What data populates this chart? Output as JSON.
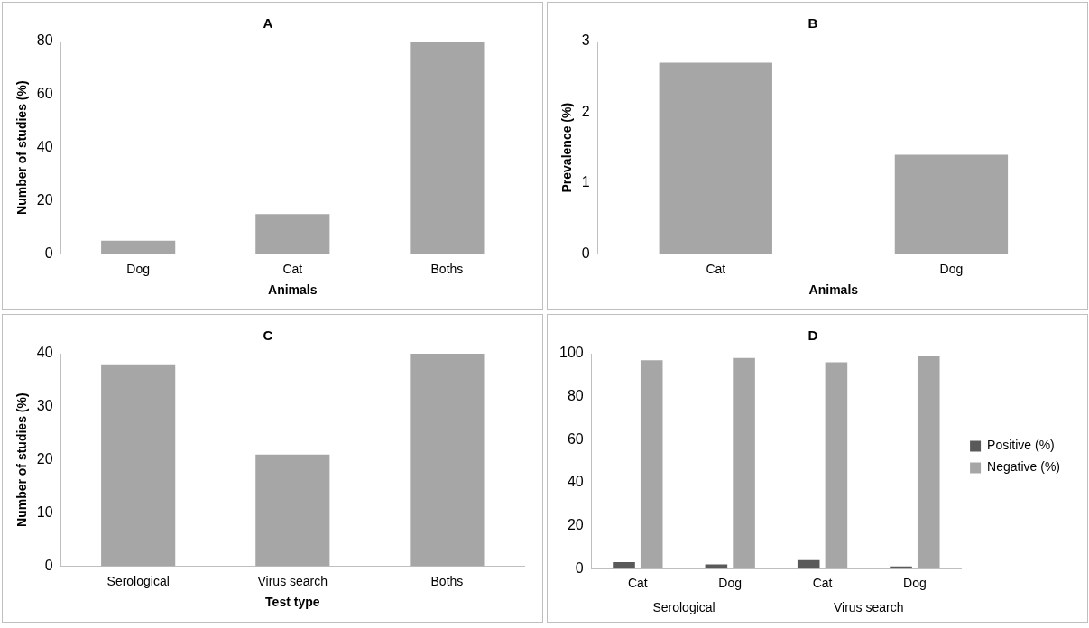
{
  "chart_data": [
    {
      "type": "bar",
      "title": "A",
      "xlabel": "Animals",
      "ylabel": "Number of studies (%)",
      "categories": [
        "Dog",
        "Cat",
        "Boths"
      ],
      "values": [
        5,
        15,
        80
      ],
      "color": "#a6a6a6",
      "ylim": [
        0,
        80
      ],
      "yticks": [
        0,
        20,
        40,
        60,
        80
      ]
    },
    {
      "type": "bar",
      "title": "B",
      "xlabel": "Animals",
      "ylabel": "Prevalence (%)",
      "categories": [
        "Cat",
        "Dog"
      ],
      "values": [
        2.7,
        1.4
      ],
      "color": "#a6a6a6",
      "ylim": [
        0,
        3
      ],
      "yticks": [
        0,
        1,
        2,
        3
      ]
    },
    {
      "type": "bar",
      "title": "C",
      "xlabel": "Test type",
      "ylabel": "Number of studies (%)",
      "categories": [
        "Serological",
        "Virus search",
        "Boths"
      ],
      "values": [
        38,
        21,
        40
      ],
      "color": "#a6a6a6",
      "ylim": [
        0,
        40
      ],
      "yticks": [
        0,
        10,
        20,
        30,
        40
      ]
    },
    {
      "type": "bar",
      "title": "D",
      "categories": [
        "Cat",
        "Dog",
        "Cat",
        "Dog"
      ],
      "annotations": [
        "Serological",
        "Virus search"
      ],
      "legend": "right",
      "ylim": [
        0,
        100
      ],
      "yticks": [
        0,
        20,
        40,
        60,
        80,
        100
      ],
      "series": [
        {
          "name": "Positive (%)",
          "color": "#595959",
          "values": [
            3,
            2,
            4,
            1
          ]
        },
        {
          "name": "Negative (%)",
          "color": "#a6a6a6",
          "values": [
            97,
            98,
            96,
            99
          ]
        }
      ]
    }
  ]
}
